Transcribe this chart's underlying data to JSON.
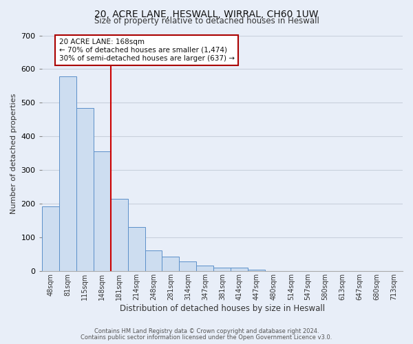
{
  "title": "20, ACRE LANE, HESWALL, WIRRAL, CH60 1UW",
  "subtitle": "Size of property relative to detached houses in Heswall",
  "xlabel": "Distribution of detached houses by size in Heswall",
  "ylabel": "Number of detached properties",
  "bin_labels": [
    "48sqm",
    "81sqm",
    "115sqm",
    "148sqm",
    "181sqm",
    "214sqm",
    "248sqm",
    "281sqm",
    "314sqm",
    "347sqm",
    "381sqm",
    "414sqm",
    "447sqm",
    "480sqm",
    "514sqm",
    "547sqm",
    "580sqm",
    "613sqm",
    "647sqm",
    "680sqm",
    "713sqm"
  ],
  "bar_values": [
    193,
    578,
    484,
    355,
    215,
    132,
    62,
    44,
    30,
    16,
    10,
    11,
    5,
    0,
    0,
    0,
    0,
    0,
    0,
    0,
    0
  ],
  "bar_color": "#cdddf0",
  "bar_edge_color": "#5b8fc9",
  "ylim": [
    0,
    700
  ],
  "yticks": [
    0,
    100,
    200,
    300,
    400,
    500,
    600,
    700
  ],
  "red_line_x": 3.5,
  "annotation_title": "20 ACRE LANE: 168sqm",
  "annotation_line1": "← 70% of detached houses are smaller (1,474)",
  "annotation_line2": "30% of semi-detached houses are larger (637) →",
  "footer_line1": "Contains HM Land Registry data © Crown copyright and database right 2024.",
  "footer_line2": "Contains public sector information licensed under the Open Government Licence v3.0.",
  "bg_color": "#e8eef8",
  "plot_bg_color": "#e8eef8",
  "grid_color": "#c8d0dc",
  "annotation_box_color": "#ffffff",
  "annotation_box_edge": "#aa0000"
}
